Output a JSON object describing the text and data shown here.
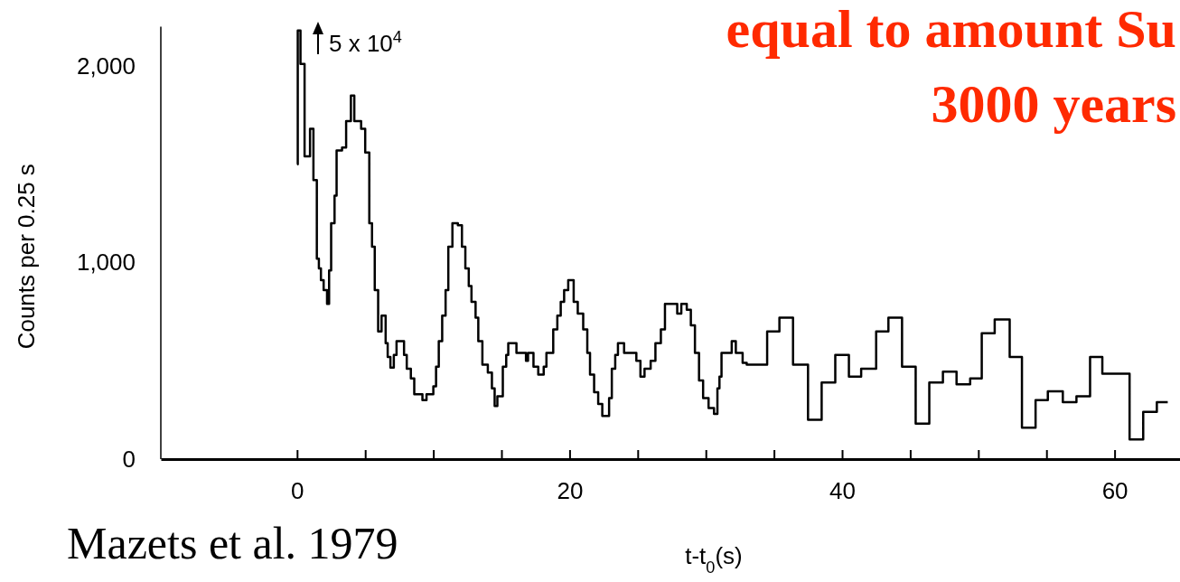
{
  "chart_data": {
    "type": "step",
    "title": "equal to amount Su",
    "subtitle": "3000 years",
    "xlabel": "t-t$_{0}$(s)",
    "ylabel": "Counts per 0.25 s",
    "annotations": [
      "5 x 10$^{4}$",
      "Mazets et al. 1979"
    ],
    "xlim": [
      -10,
      64.8
    ],
    "ylim": [
      0,
      2200
    ],
    "xticks": [
      0,
      {
        "value": 5,
        "label": null
      },
      {
        "value": 10,
        "label": null
      },
      {
        "value": 15,
        "label": null
      },
      20,
      {
        "value": 25,
        "label": null
      },
      {
        "value": 30,
        "label": null
      },
      {
        "value": 35,
        "label": null
      },
      40,
      {
        "value": 45,
        "label": null
      },
      {
        "value": 50,
        "label": null
      },
      {
        "value": 55,
        "label": null
      },
      60
    ],
    "yticks": [
      0,
      {
        "value": 1000,
        "label": "1,000"
      },
      {
        "value": 2000,
        "label": "2,000"
      }
    ],
    "grid": false,
    "line_style": "solid",
    "series": [
      {
        "color": "#000000",
        "x": [
          0,
          0.05,
          0.25,
          0.55,
          0.95,
          1.2,
          1.45,
          1.6,
          1.75,
          1.95,
          2.2,
          2.35,
          2.5,
          2.75,
          2.9,
          3.3,
          3.6,
          3.95,
          4.2,
          4.7,
          5.0,
          5.3,
          5.5,
          5.7,
          5.95,
          6.2,
          6.5,
          6.65,
          6.85,
          7.1,
          7.3,
          7.85,
          8.05,
          8.35,
          8.6,
          9.2,
          9.5,
          10.0,
          10.2,
          10.4,
          10.65,
          10.9,
          11.1,
          11.4,
          11.8,
          12.1,
          12.35,
          12.6,
          12.8,
          13.1,
          13.3,
          13.6,
          14.0,
          14.3,
          14.5,
          14.7,
          15.1,
          15.35,
          15.5,
          16.1,
          16.8,
          16.95,
          17.35,
          17.7,
          18.1,
          18.3,
          18.8,
          19.1,
          19.35,
          19.6,
          19.9,
          20.3,
          20.6,
          21.0,
          21.3,
          21.5,
          21.8,
          22.1,
          22.4,
          22.9,
          23.1,
          23.35,
          23.55,
          24.0,
          24.9,
          25.2,
          25.5,
          25.95,
          26.3,
          26.7,
          27.0,
          27.9,
          28.2,
          28.6,
          28.9,
          29.2,
          29.5,
          29.8,
          30.2,
          30.6,
          30.85,
          31.0,
          31.15,
          31.9,
          32.2,
          32.7,
          33.0,
          34.5,
          35.4,
          36.4,
          37.5,
          38.5,
          39.5,
          40.5,
          41.4,
          42.5,
          43.4,
          44.4,
          45.4,
          46.4,
          47.4,
          48.4,
          49.4,
          50.25,
          51.2,
          52.3,
          53.2,
          54.2,
          55.1,
          56.2,
          57.2,
          58.2,
          59.1,
          61.1,
          62.1,
          63.1,
          63.9
        ],
        "values": [
          1500,
          2180,
          2010,
          1540,
          1680,
          1420,
          1020,
          970,
          910,
          860,
          790,
          960,
          1200,
          1340,
          1570,
          1585,
          1720,
          1850,
          1720,
          1680,
          1560,
          1200,
          1080,
          860,
          650,
          730,
          590,
          520,
          465,
          530,
          600,
          530,
          460,
          410,
          330,
          300,
          330,
          370,
          470,
          600,
          730,
          860,
          1080,
          1200,
          1190,
          1080,
          970,
          880,
          800,
          720,
          600,
          480,
          440,
          360,
          270,
          320,
          470,
          530,
          590,
          540,
          500,
          540,
          470,
          430,
          470,
          540,
          660,
          730,
          800,
          860,
          910,
          800,
          740,
          660,
          540,
          430,
          340,
          280,
          220,
          310,
          460,
          530,
          590,
          540,
          500,
          420,
          460,
          500,
          590,
          660,
          790,
          740,
          790,
          760,
          680,
          540,
          400,
          310,
          260,
          230,
          360,
          420,
          540,
          600,
          540,
          490,
          480,
          650,
          720,
          480,
          200,
          390,
          530,
          420,
          460,
          650,
          720,
          470,
          180,
          390,
          445,
          380,
          410,
          640,
          710,
          520,
          160,
          300,
          345,
          290,
          320,
          520,
          435,
          100,
          240,
          290,
          290
        ]
      }
    ]
  }
}
